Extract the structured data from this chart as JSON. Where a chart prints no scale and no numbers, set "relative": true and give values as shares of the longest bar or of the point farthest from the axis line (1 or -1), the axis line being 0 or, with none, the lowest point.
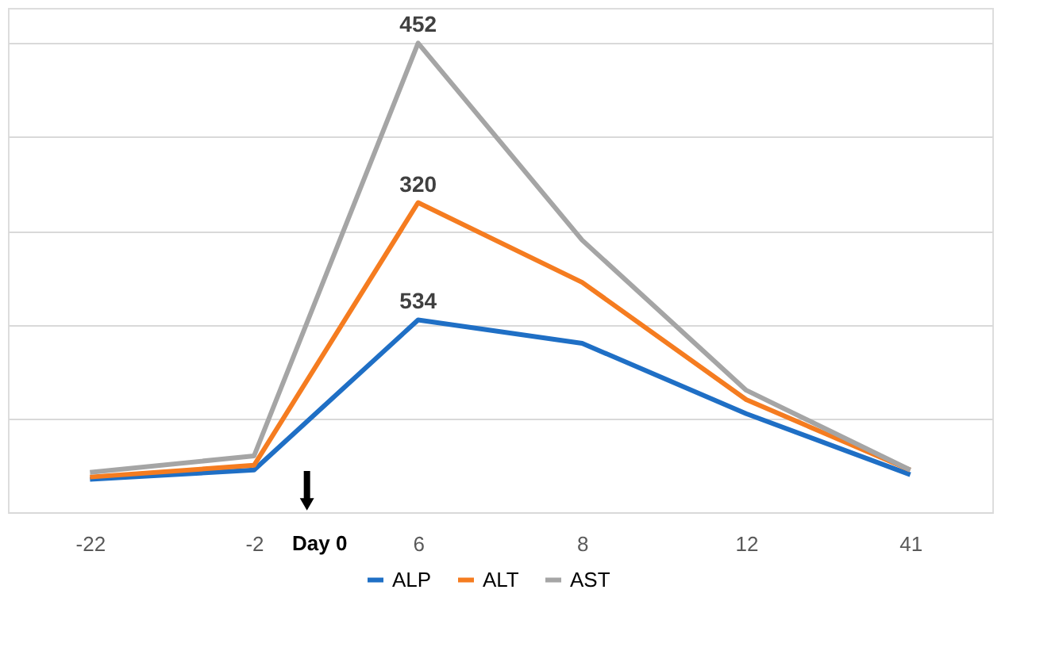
{
  "chart_data": {
    "type": "line",
    "relative": true,
    "categories": [
      "-22",
      "-2",
      "6",
      "8",
      "12",
      "41"
    ],
    "series": [
      {
        "name": "ALP",
        "color": "#1f6fc5",
        "values": [
          0.07,
          0.09,
          0.41,
          0.36,
          0.21,
          0.08
        ]
      },
      {
        "name": "ALT",
        "color": "#f57c20",
        "values": [
          0.075,
          0.1,
          0.66,
          0.49,
          0.24,
          0.09
        ]
      },
      {
        "name": "AST",
        "color": "#a5a5a5",
        "values": [
          0.085,
          0.12,
          1,
          0.58,
          0.26,
          0.09
        ]
      }
    ],
    "annotations": [
      "Day 0",
      {
        "text": "534",
        "x": "6",
        "y": 0.41
      },
      {
        "text": "320",
        "x": "6",
        "y": 0.66
      },
      {
        "text": "452",
        "x": "6",
        "y": 1
      }
    ],
    "grid": "y",
    "legend": "bottom",
    "marker": "none",
    "line_style": "solid"
  }
}
